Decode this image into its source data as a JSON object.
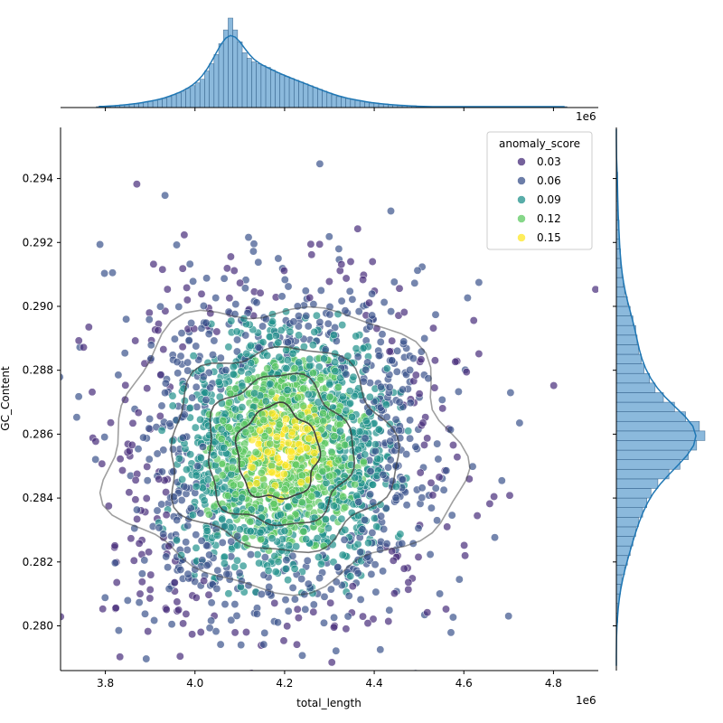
{
  "chart_data": {
    "type": "scatter",
    "xlabel": "total_length",
    "ylabel": "GC_Content",
    "x_offset_label": "1e6",
    "xlim": [
      3.7,
      4.9
    ],
    "ylim": [
      0.2786,
      0.2956
    ],
    "xticks": [
      "3.8",
      "4.0",
      "4.2",
      "4.4",
      "4.6",
      "4.8"
    ],
    "yticks": [
      "0.280",
      "0.282",
      "0.284",
      "0.286",
      "0.288",
      "0.290",
      "0.292",
      "0.294"
    ],
    "legend": {
      "title": "anomaly_score",
      "placement": "top-right",
      "entries": [
        {
          "label": "0.03",
          "color": "#472c7a"
        },
        {
          "label": "0.06",
          "color": "#3b528b"
        },
        {
          "label": "0.09",
          "color": "#21918c"
        },
        {
          "label": "0.12",
          "color": "#5ec962"
        },
        {
          "label": "0.15",
          "color": "#fde725"
        }
      ]
    },
    "scatter_center": {
      "x": 4.2,
      "y": 0.2855
    },
    "scatter_spread": {
      "x": 0.14,
      "y": 0.0025
    },
    "marginal_x_hist": {
      "bin_start": 3.78,
      "bin_width": 0.0105,
      "counts": [
        1,
        1,
        1,
        2,
        2,
        3,
        3,
        4,
        4,
        5,
        6,
        7,
        8,
        9,
        10,
        12,
        14,
        16,
        18,
        21,
        24,
        27,
        31,
        40,
        48,
        58,
        70,
        85,
        98,
        85,
        72,
        60,
        54,
        50,
        48,
        46,
        44,
        41,
        38,
        36,
        34,
        32,
        30,
        28,
        26,
        24,
        22,
        20,
        18,
        16,
        14,
        12,
        11,
        10,
        9,
        8,
        7,
        6,
        5,
        5,
        4,
        4,
        3,
        3,
        2,
        2,
        2,
        2,
        1,
        1,
        1,
        1,
        1,
        1,
        1,
        1,
        1,
        1,
        1,
        1,
        1,
        1,
        1,
        1,
        1,
        1,
        1,
        1,
        1,
        1,
        1,
        1,
        1,
        1,
        1,
        1,
        1,
        1,
        1,
        1
      ]
    },
    "marginal_y_hist": {
      "bin_start": 0.2786,
      "bin_width": 0.0003,
      "counts": [
        0,
        0,
        0,
        0,
        0,
        1,
        1,
        2,
        3,
        4,
        6,
        8,
        10,
        12,
        14,
        16,
        19,
        22,
        25,
        30,
        38,
        46,
        52,
        58,
        64,
        60,
        50,
        42,
        34,
        28,
        24,
        20,
        18,
        16,
        15,
        14,
        12,
        10,
        8,
        6,
        5,
        4,
        3,
        3,
        2,
        2,
        2,
        1,
        1,
        1,
        1,
        1,
        0,
        0,
        0,
        0,
        0
      ]
    },
    "contours": {
      "levels": 4,
      "color": "#404040"
    }
  }
}
